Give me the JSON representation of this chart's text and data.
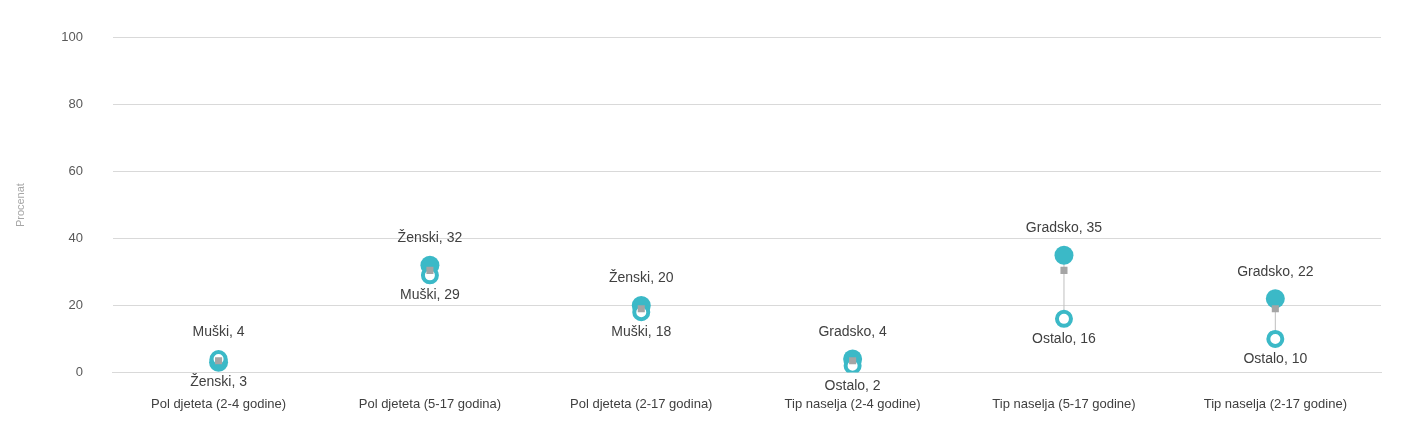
{
  "chart_data": {
    "type": "scatter",
    "ylabel": "Procenat",
    "categories": [
      "Pol djeteta (2-4 godine)",
      "Pol djeteta (5-17 godina)",
      "Pol djeteta (2-17 godina)",
      "Tip naselja (2-4 godine)",
      "Tip naselja (5-17 godine)",
      "Tip naselja (2-17 godine)"
    ],
    "series": [
      {
        "color": "#3bb9c7",
        "marker": "circle",
        "values": [
          3,
          32,
          20,
          4,
          35,
          22
        ],
        "value_labels": [
          "Ženski, 3",
          "Ženski, 32",
          "Ženski, 20",
          "Gradsko, 4",
          "Gradsko, 35",
          "Gradsko, 22"
        ]
      },
      {
        "color": "#3bb9c7",
        "marker": "circle",
        "values": [
          4,
          29,
          18,
          2,
          16,
          10
        ],
        "value_labels": [
          "Muški, 4",
          "Muški, 29",
          "Muški, 18",
          "Ostalo, 2",
          "Ostalo, 16",
          "Ostalo, 10"
        ]
      },
      {
        "color": "#a5a5a5",
        "marker": "square",
        "values": [
          3.5,
          30.5,
          19,
          3.5,
          30.5,
          19
        ]
      }
    ],
    "ylim": [
      0,
      100
    ],
    "yticks": [
      0,
      20,
      40,
      60,
      80,
      100
    ],
    "grid": "y",
    "legend": false
  }
}
